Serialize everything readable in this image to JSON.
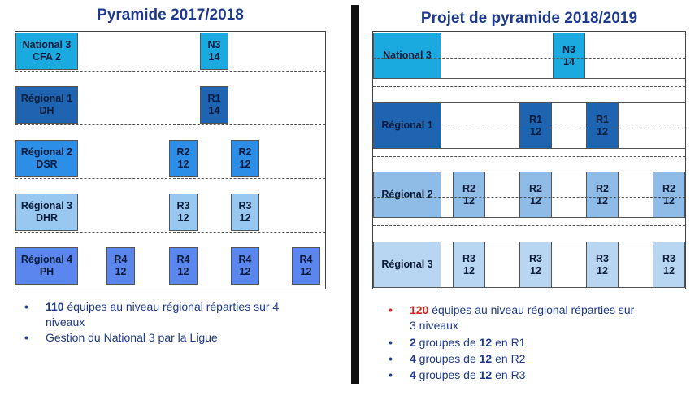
{
  "left": {
    "title": "Pyramide 2017/2018",
    "rows": [
      {
        "label_line1": "National 3",
        "label_line2": "CFA 2",
        "color": "#1aaae0",
        "cells": [
          {
            "line1": "N3",
            "line2": "14"
          }
        ]
      },
      {
        "label_line1": "Régional 1",
        "label_line2": "DH",
        "color": "#1f64b0",
        "cells": [
          {
            "line1": "R1",
            "line2": "14"
          }
        ]
      },
      {
        "label_line1": "Régional 2",
        "label_line2": "DSR",
        "color": "#2c8ee6",
        "cells": [
          {
            "line1": "R2",
            "line2": "12"
          },
          {
            "line1": "R2",
            "line2": "12"
          }
        ]
      },
      {
        "label_line1": "Régional 3",
        "label_line2": "DHR",
        "color": "#98c8f0",
        "cells": [
          {
            "line1": "R3",
            "line2": "12"
          },
          {
            "line1": "R3",
            "line2": "12"
          }
        ]
      },
      {
        "label_line1": "Régional 4",
        "label_line2": "PH",
        "color": "#5a86ee",
        "cells": [
          {
            "line1": "R4",
            "line2": "12"
          },
          {
            "line1": "R4",
            "line2": "12"
          },
          {
            "line1": "R4",
            "line2": "12"
          },
          {
            "line1": "R4",
            "line2": "12"
          }
        ]
      }
    ],
    "bullets": [
      {
        "dot": "•",
        "dot_color": "#1f3a8c",
        "bold": "110",
        "rest": " équipes au niveau régional réparties sur 4",
        "line2": "niveaux"
      },
      {
        "dot": "•",
        "dot_color": "#1f3a8c",
        "text": "Gestion du National 3 par la Ligue"
      }
    ]
  },
  "right": {
    "title": "Projet de pyramide 2018/2019",
    "rows": [
      {
        "label": "National 3",
        "color": "#1aaae0",
        "cells": [
          {
            "line1": "N3",
            "line2": "14"
          }
        ]
      },
      {
        "label": "Régional 1",
        "color": "#1f64b0",
        "cells": [
          {
            "line1": "R1",
            "line2": "12"
          },
          {
            "line1": "R1",
            "line2": "12"
          }
        ]
      },
      {
        "label": "Régional 2",
        "color": "#8fbce6",
        "cells": [
          {
            "line1": "R2",
            "line2": "12"
          },
          {
            "line1": "R2",
            "line2": "12"
          },
          {
            "line1": "R2",
            "line2": "12"
          },
          {
            "line1": "R2",
            "line2": "12"
          }
        ]
      },
      {
        "label": "Régional 3",
        "color": "#b8d6f2",
        "cells": [
          {
            "line1": "R3",
            "line2": "12"
          },
          {
            "line1": "R3",
            "line2": "12"
          },
          {
            "line1": "R3",
            "line2": "12"
          },
          {
            "line1": "R3",
            "line2": "12"
          }
        ]
      }
    ],
    "bullets": [
      {
        "dot": "•",
        "dot_color": "#e02020",
        "bold": "120",
        "bold_color": "#e02020",
        "rest": " équipes au niveau régional réparties sur",
        "line2": "3 niveaux"
      },
      {
        "dot": "•",
        "dot_color": "#1f3a8c",
        "bold": "2",
        "mid": " groupes de ",
        "bold2": "12",
        "rest": " en R1"
      },
      {
        "dot": "•",
        "dot_color": "#1f3a8c",
        "bold": "4",
        "mid": " groupes de ",
        "bold2": "12",
        "rest": " en R2"
      },
      {
        "dot": "•",
        "dot_color": "#1f3a8c",
        "bold": "4",
        "mid": " groupes de ",
        "bold2": "12",
        "rest": " en R3"
      }
    ]
  }
}
